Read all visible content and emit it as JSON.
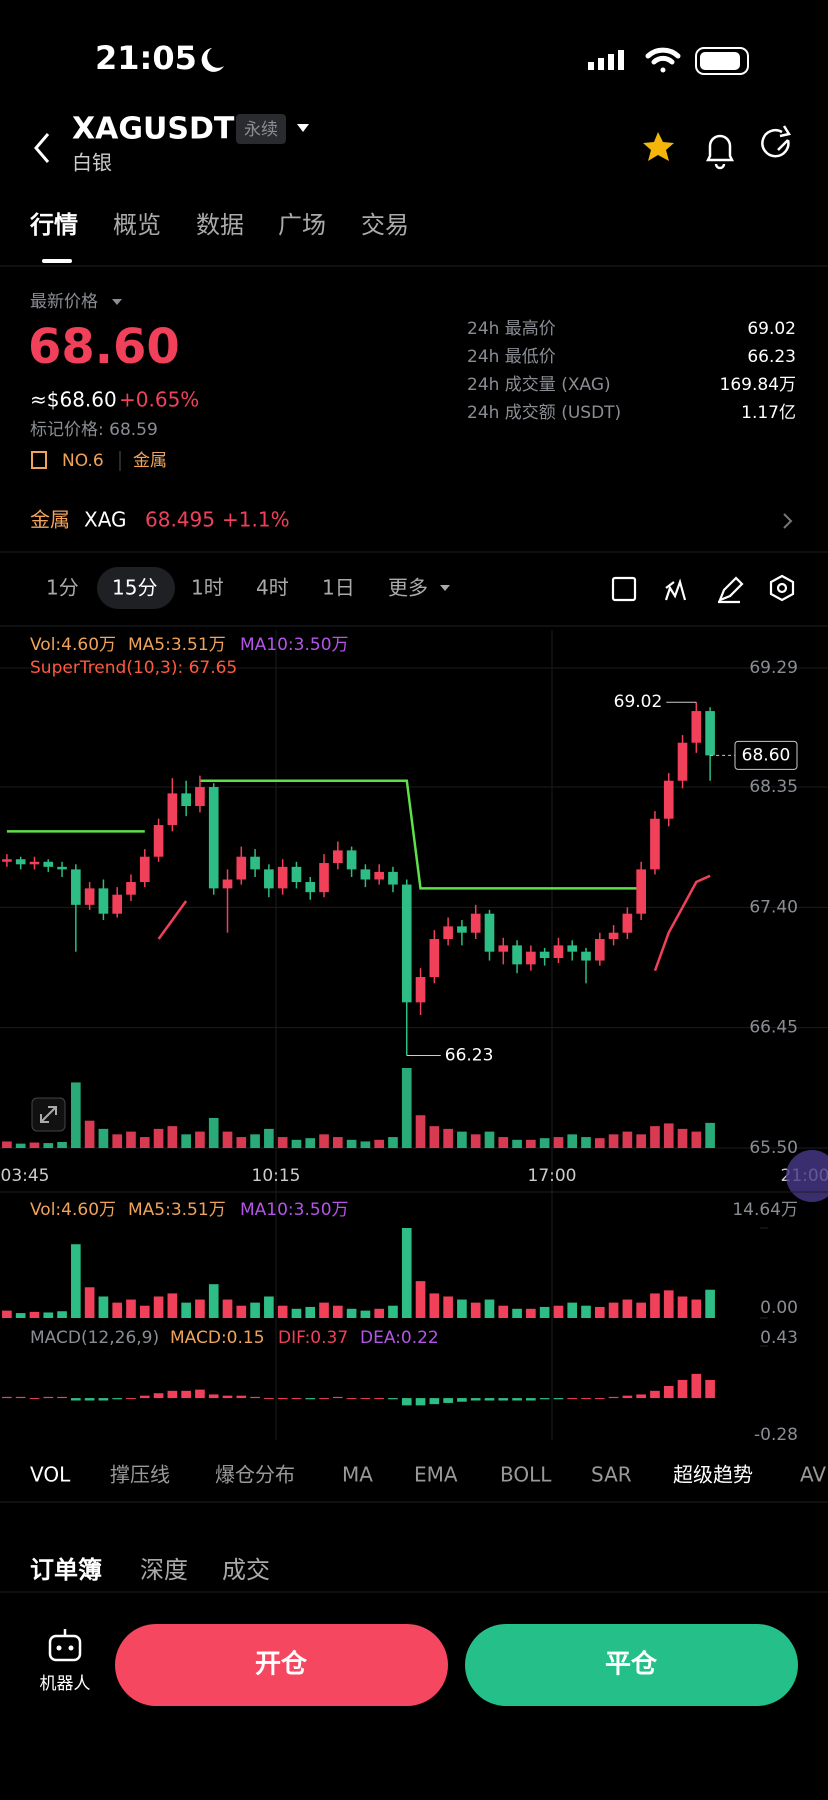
{
  "status_bar": {
    "time": "21:05"
  },
  "header": {
    "symbol": "XAGUSDT",
    "tag": "永续",
    "subtitle": "白银"
  },
  "tabs": [
    "行情",
    "概览",
    "数据",
    "广场",
    "交易"
  ],
  "price": {
    "label": "最新价格",
    "last": "68.60",
    "usd": "≈$68.60",
    "change": "+0.65%",
    "mark": "标记价格: 68.59",
    "rank": "NO.6",
    "sector": "金属"
  },
  "stats": [
    {
      "label": "24h 最高价",
      "value": "69.02"
    },
    {
      "label": "24h 最低价",
      "value": "66.23"
    },
    {
      "label": "24h 成交量 (XAG)",
      "value": "169.84万"
    },
    {
      "label": "24h 成交额 (USDT)",
      "value": "1.17亿"
    }
  ],
  "index_bar": {
    "sector": "金属",
    "symbol": "XAG",
    "price": "68.495",
    "change": "+1.1%"
  },
  "intervals": [
    "1分",
    "15分",
    "1时",
    "4时",
    "1日",
    "更多"
  ],
  "chart": {
    "up_color": "#f0405a",
    "down_color": "#2ebd85",
    "legend": [
      "Vol:4.60万",
      "MA5:3.51万",
      "MA10:3.50万"
    ],
    "supertrend_label": "SuperTrend(10,3): 67.65",
    "ylim": [
      65.5,
      69.29
    ],
    "yticks": [
      69.29,
      68.35,
      {
        "value": 67.4,
        "label": "67.40"
      },
      66.45,
      {
        "value": 65.5,
        "label": "65.50"
      }
    ],
    "times": [
      "03:45",
      "10:15",
      "17:00",
      "21:00"
    ],
    "candles": [
      [
        67.76,
        67.82,
        67.72,
        67.78
      ],
      [
        67.78,
        67.8,
        67.7,
        67.74
      ],
      [
        67.74,
        67.8,
        67.7,
        67.76
      ],
      [
        67.76,
        67.78,
        67.68,
        67.72
      ],
      [
        67.72,
        67.76,
        67.64,
        67.7
      ],
      [
        67.7,
        67.74,
        67.05,
        67.42
      ],
      [
        67.42,
        67.6,
        67.38,
        67.55
      ],
      [
        67.55,
        67.62,
        67.3,
        67.35
      ],
      [
        67.35,
        67.56,
        67.32,
        67.5
      ],
      [
        67.5,
        67.66,
        67.45,
        67.6
      ],
      [
        67.6,
        67.86,
        67.56,
        67.8
      ],
      [
        67.8,
        68.1,
        67.76,
        68.05
      ],
      [
        68.05,
        68.42,
        68.0,
        68.3
      ],
      [
        68.3,
        68.4,
        68.12,
        68.2
      ],
      [
        68.2,
        68.44,
        68.15,
        68.35
      ],
      [
        68.35,
        68.38,
        67.5,
        67.55
      ],
      [
        67.55,
        67.7,
        67.2,
        67.62
      ],
      [
        67.62,
        67.88,
        67.58,
        67.8
      ],
      [
        67.8,
        67.86,
        67.64,
        67.7
      ],
      [
        67.7,
        67.74,
        67.48,
        67.55
      ],
      [
        67.55,
        67.78,
        67.5,
        67.72
      ],
      [
        67.72,
        67.76,
        67.55,
        67.6
      ],
      [
        67.6,
        67.64,
        67.46,
        67.52
      ],
      [
        67.52,
        67.82,
        67.48,
        67.75
      ],
      [
        67.75,
        67.92,
        67.7,
        67.85
      ],
      [
        67.85,
        67.88,
        67.64,
        67.7
      ],
      [
        67.7,
        67.74,
        67.56,
        67.62
      ],
      [
        67.62,
        67.74,
        67.58,
        67.68
      ],
      [
        67.68,
        67.72,
        67.52,
        67.58
      ],
      [
        67.58,
        67.62,
        66.23,
        66.65
      ],
      [
        66.65,
        66.92,
        66.55,
        66.85
      ],
      [
        66.85,
        67.22,
        66.8,
        67.15
      ],
      [
        67.15,
        67.32,
        67.1,
        67.25
      ],
      [
        67.25,
        67.3,
        67.1,
        67.2
      ],
      [
        67.2,
        67.42,
        67.15,
        67.35
      ],
      [
        67.35,
        67.38,
        66.98,
        67.05
      ],
      [
        67.05,
        67.16,
        66.95,
        67.1
      ],
      [
        67.1,
        67.14,
        66.88,
        66.95
      ],
      [
        66.95,
        67.1,
        66.9,
        67.05
      ],
      [
        67.05,
        67.08,
        66.94,
        67.0
      ],
      [
        67.0,
        67.16,
        66.96,
        67.1
      ],
      [
        67.1,
        67.14,
        66.98,
        67.05
      ],
      [
        67.05,
        67.08,
        66.8,
        66.98
      ],
      [
        66.98,
        67.2,
        66.94,
        67.15
      ],
      [
        67.15,
        67.26,
        67.1,
        67.2
      ],
      [
        67.2,
        67.4,
        67.15,
        67.35
      ],
      [
        67.35,
        67.76,
        67.3,
        67.7
      ],
      [
        67.7,
        68.16,
        67.66,
        68.1
      ],
      [
        68.1,
        68.46,
        68.04,
        68.4
      ],
      [
        68.4,
        68.76,
        68.34,
        68.7
      ],
      [
        68.7,
        69.02,
        68.62,
        68.95
      ],
      [
        68.95,
        68.98,
        68.4,
        68.6
      ]
    ],
    "supertrend": {
      "up": [
        68.0,
        68.0,
        68.0,
        68.0,
        68.0,
        68.0,
        68.0,
        68.0,
        68.0,
        68.0,
        68.0,
        null,
        null,
        null,
        68.4,
        68.4,
        68.4,
        68.4,
        68.4,
        68.4,
        68.4,
        68.4,
        68.4,
        68.4,
        68.4,
        68.4,
        68.4,
        68.4,
        68.4,
        68.4,
        67.55,
        67.55,
        67.55,
        67.55,
        67.55,
        67.55,
        67.55,
        67.55,
        67.55,
        67.55,
        67.55,
        67.55,
        67.55,
        67.55,
        67.55,
        67.55,
        67.55,
        null,
        null,
        null,
        null,
        null
      ],
      "down": [
        null,
        null,
        null,
        null,
        null,
        null,
        null,
        null,
        null,
        null,
        null,
        67.15,
        67.3,
        67.45,
        null,
        null,
        null,
        null,
        null,
        null,
        null,
        null,
        null,
        null,
        null,
        null,
        null,
        null,
        null,
        null,
        null,
        null,
        null,
        null,
        null,
        null,
        null,
        null,
        null,
        null,
        null,
        null,
        null,
        null,
        null,
        null,
        null,
        66.9,
        67.2,
        67.4,
        67.6,
        67.65
      ]
    },
    "high_label": 69.02,
    "low_label": 66.23,
    "last_label": {
      "value": 68.6,
      "label": "68.60"
    },
    "volume": {
      "legend": [
        "Vol:4.60万",
        "MA5:3.51万",
        "MA10:3.50万"
      ],
      "ylim": [
        0,
        14.64
      ],
      "yticks": [
        {
          "value": 14.64,
          "label": "14.64万"
        },
        {
          "value": 0,
          "label": "0.00"
        }
      ],
      "values": [
        1.2,
        0.8,
        1.0,
        0.9,
        1.1,
        12.0,
        5.0,
        3.5,
        2.5,
        3.0,
        2.0,
        3.5,
        4.0,
        2.5,
        3.0,
        5.5,
        3.0,
        2.0,
        2.5,
        3.5,
        2.0,
        1.5,
        1.8,
        2.5,
        2.0,
        1.5,
        1.2,
        1.5,
        2.0,
        14.64,
        6.0,
        4.0,
        3.5,
        3.0,
        2.5,
        3.0,
        2.0,
        1.5,
        1.5,
        1.8,
        2.0,
        2.5,
        2.0,
        1.8,
        2.5,
        3.0,
        2.5,
        4.0,
        4.5,
        3.5,
        3.0,
        4.6
      ]
    },
    "macd": {
      "legend": [
        "MACD(12,26,9)",
        "MACD:0.15",
        "DIF:0.37",
        "DEA:0.22"
      ],
      "ylim": [
        -0.28,
        0.43
      ],
      "yticks": [
        0.43,
        -0.28
      ],
      "values": [
        0.01,
        0.01,
        0.0,
        0.01,
        0.01,
        -0.02,
        -0.02,
        -0.02,
        -0.01,
        0.0,
        0.02,
        0.04,
        0.06,
        0.06,
        0.07,
        0.03,
        0.02,
        0.02,
        0.01,
        0.0,
        0.0,
        0.0,
        -0.01,
        0.0,
        0.01,
        0.0,
        0.0,
        0.0,
        -0.01,
        -0.06,
        -0.06,
        -0.05,
        -0.04,
        -0.03,
        -0.02,
        -0.02,
        -0.02,
        -0.02,
        -0.02,
        -0.01,
        -0.01,
        0.0,
        0.0,
        0.0,
        0.01,
        0.02,
        0.03,
        0.06,
        0.1,
        0.15,
        0.2,
        0.15
      ]
    }
  },
  "indicators": [
    "VOL",
    "撑压线",
    "爆仓分布",
    "MA",
    "EMA",
    "BOLL",
    "SAR",
    "超级趋势",
    "AV"
  ],
  "book_tabs": [
    "订单簿",
    "深度",
    "成交"
  ],
  "bottom": {
    "robot": "机器人",
    "open": "开仓",
    "close": "平仓"
  }
}
